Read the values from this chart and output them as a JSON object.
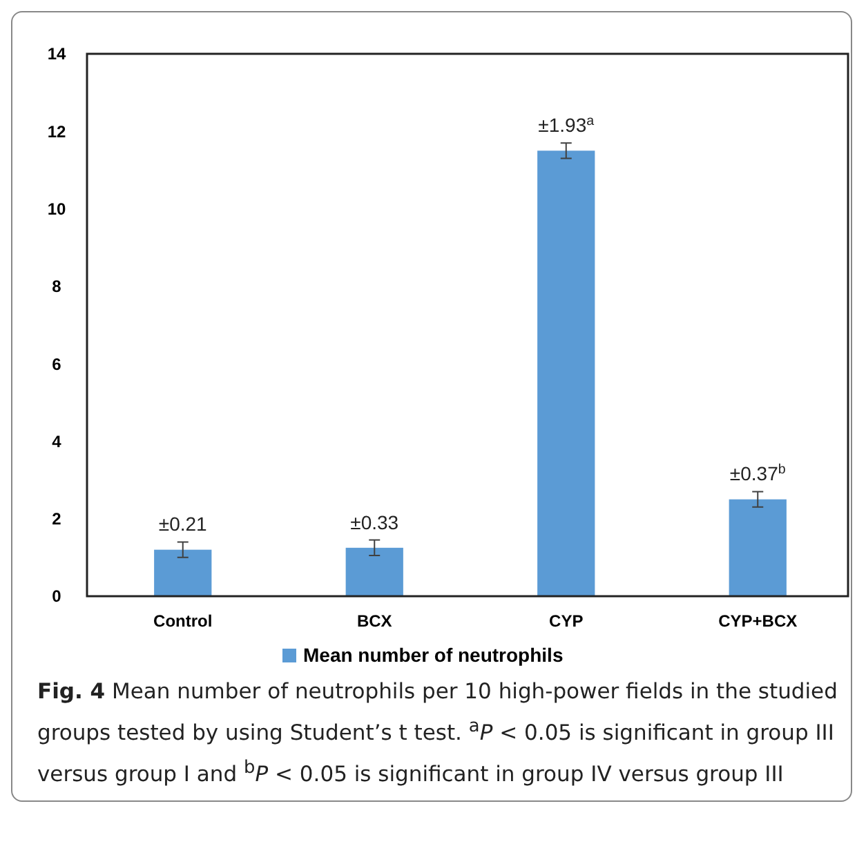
{
  "chart_data": {
    "type": "bar",
    "categories": [
      "Control",
      "BCX",
      "CYP",
      "CYP+BCX"
    ],
    "series": [
      {
        "name": "Mean number of neutrophils",
        "color": "#5b9bd5",
        "values": [
          1.2,
          1.25,
          11.5,
          2.5
        ],
        "errors": [
          0.2,
          0.2,
          0.2,
          0.2
        ]
      }
    ],
    "ylim": [
      0,
      14
    ],
    "yticks": [
      0,
      2,
      4,
      6,
      8,
      10,
      12,
      14
    ],
    "grid": false,
    "legend": "bottom",
    "annotations": [
      {
        "text": "±0.21",
        "x": "Control",
        "y": 1.4
      },
      {
        "text": "±0.33",
        "x": "BCX",
        "y": 1.45
      },
      {
        "text": "±1.93$^{a}$",
        "x": "CYP",
        "y": 11.7
      },
      {
        "text": "±0.37$^{b}$",
        "x": "CYP+BCX",
        "y": 2.7
      },
      "**Fig. 4** Mean number of neutrophils per 10 high-power fields in the studied groups tested by using Student’s t test. $^{a}$*P* < 0.05 is significant in group III versus group I and $^{b}$*P* < 0.05 is significant in group IV versus group III"
    ]
  }
}
